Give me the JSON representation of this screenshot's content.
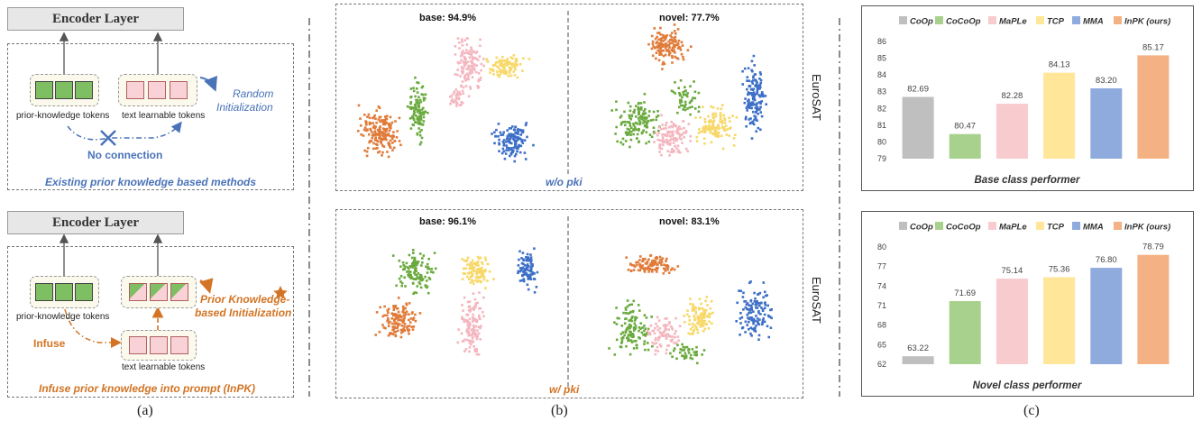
{
  "panel_a": {
    "top": {
      "encoder_label": "Encoder Layer",
      "prior_tokens_label": "prior-knowledge tokens",
      "text_tokens_label": "text learnable tokens",
      "init_label_line1": "Random",
      "init_label_line2": "Initialization",
      "connection_label": "No connection",
      "caption": "Existing prior knowledge based methods"
    },
    "bottom": {
      "encoder_label": "Encoder Layer",
      "prior_tokens_label": "prior-knowledge tokens",
      "text_tokens_label": "text learnable tokens",
      "init_label_line1": "Prior Knowledge-",
      "init_label_line2": "based Initialization",
      "infuse_label": "Infuse",
      "caption": "Infuse prior knowledge into prompt (InPK)"
    },
    "subfigure_label": "(a)"
  },
  "panel_b": {
    "top": {
      "base_label": "base:  94.9%",
      "novel_label": "novel:  77.7%",
      "caption": "w/o pki",
      "side_label": "EuroSAT"
    },
    "bottom": {
      "base_label": "base:  96.1%",
      "novel_label": "novel:  83.1%",
      "caption": "w/ pki",
      "side_label": "EuroSAT"
    },
    "cluster_colors": [
      "#e07b39",
      "#6aaa3e",
      "#f4b6bf",
      "#f7d868",
      "#3d6fc7"
    ],
    "subfigure_label": "(b)"
  },
  "panel_c": {
    "subfigure_label": "(c)"
  },
  "chart_data": [
    {
      "type": "bar",
      "title": "Base class performer",
      "categories": [
        "CoOp",
        "CoCoOp",
        "MaPLe",
        "TCP",
        "MMA",
        "InPK (ours)"
      ],
      "values": [
        82.69,
        80.47,
        82.28,
        84.13,
        83.2,
        85.17
      ],
      "value_labels": [
        "82.69",
        "80.47",
        "82.28",
        "84.13",
        "83.20",
        "85.17"
      ],
      "colors": [
        "#bfbfbf",
        "#a9d18e",
        "#f8cbcf",
        "#ffe699",
        "#8faadc",
        "#f4b183"
      ],
      "ylim": [
        79,
        86
      ],
      "yticks": [
        "79",
        "80",
        "81",
        "82",
        "83",
        "84",
        "85",
        "86"
      ],
      "legend": "top",
      "grid": false
    },
    {
      "type": "bar",
      "title": "Novel class performer",
      "categories": [
        "CoOp",
        "CoCoOp",
        "MaPLe",
        "TCP",
        "MMA",
        "InPK (ours)"
      ],
      "values": [
        63.22,
        71.69,
        75.14,
        75.36,
        76.8,
        78.79
      ],
      "value_labels": [
        "63.22",
        "71.69",
        "75.14",
        "75.36",
        "76.80",
        "78.79"
      ],
      "colors": [
        "#bfbfbf",
        "#a9d18e",
        "#f8cbcf",
        "#ffe699",
        "#8faadc",
        "#f4b183"
      ],
      "ylim": [
        62,
        80
      ],
      "yticks": [
        "62",
        "65",
        "68",
        "71",
        "74",
        "77",
        "80"
      ],
      "legend": "top",
      "grid": false
    }
  ]
}
